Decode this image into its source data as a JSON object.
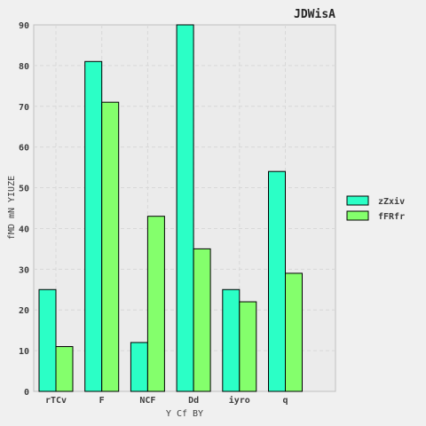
{
  "chart_data": {
    "type": "bar",
    "title": "JDWisA",
    "xlabel": "Y Cf BY",
    "ylabel": "fMD mN YIUZE",
    "categories": [
      "rTCv",
      "F",
      "NCF",
      "Dd",
      "iyro",
      "q"
    ],
    "series": [
      {
        "name": "zZxiv",
        "values": [
          25,
          81,
          12,
          90,
          25,
          54
        ],
        "color": "#2bffc6"
      },
      {
        "name": "fFRfr",
        "values": [
          11,
          71,
          43,
          35,
          22,
          29
        ],
        "color": "#84ff6c"
      }
    ],
    "ylim": [
      0,
      90
    ],
    "yticks": [
      0,
      10,
      20,
      30,
      40,
      50,
      60,
      70,
      80,
      90
    ],
    "grid": true,
    "legend_position": "right",
    "colors": {
      "background": "#f0f0f0",
      "plot_background": "#ebebeb",
      "grid": "#d8d8d8",
      "text": "#404040"
    }
  }
}
